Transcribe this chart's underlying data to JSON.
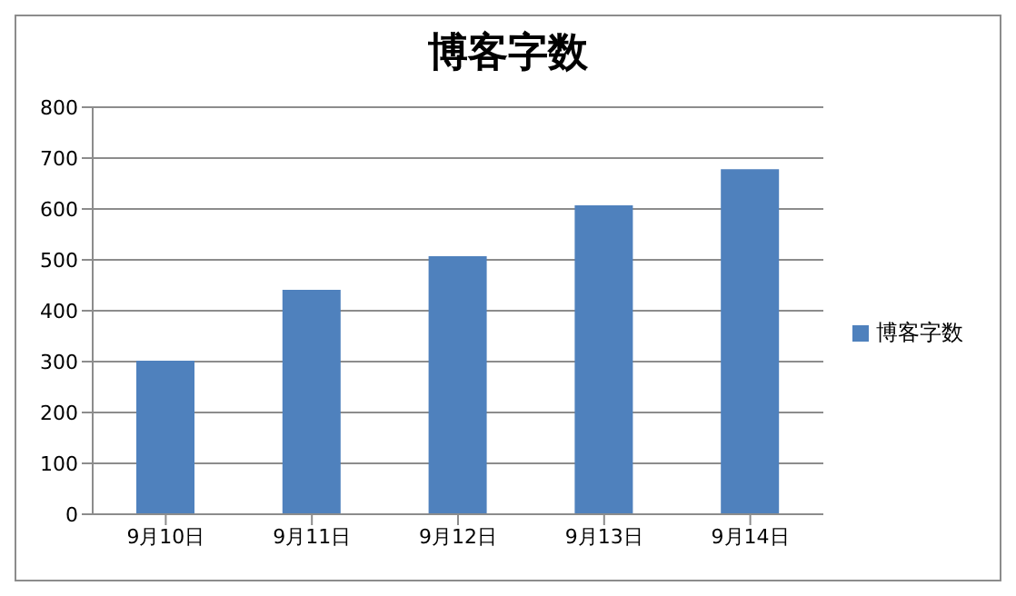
{
  "chart_data": {
    "type": "bar",
    "title": "博客字数",
    "categories": [
      "9月10日",
      "9月11日",
      "9月12日",
      "9月13日",
      "9月14日"
    ],
    "series": [
      {
        "name": "博客字数",
        "color": "#4f81bd",
        "values": [
          302,
          441,
          507,
          607,
          678
        ]
      }
    ],
    "ylim": [
      0,
      800
    ],
    "yticks": [
      0,
      100,
      200,
      300,
      400,
      500,
      600,
      700,
      800
    ],
    "grid": "y",
    "legend": "right"
  }
}
